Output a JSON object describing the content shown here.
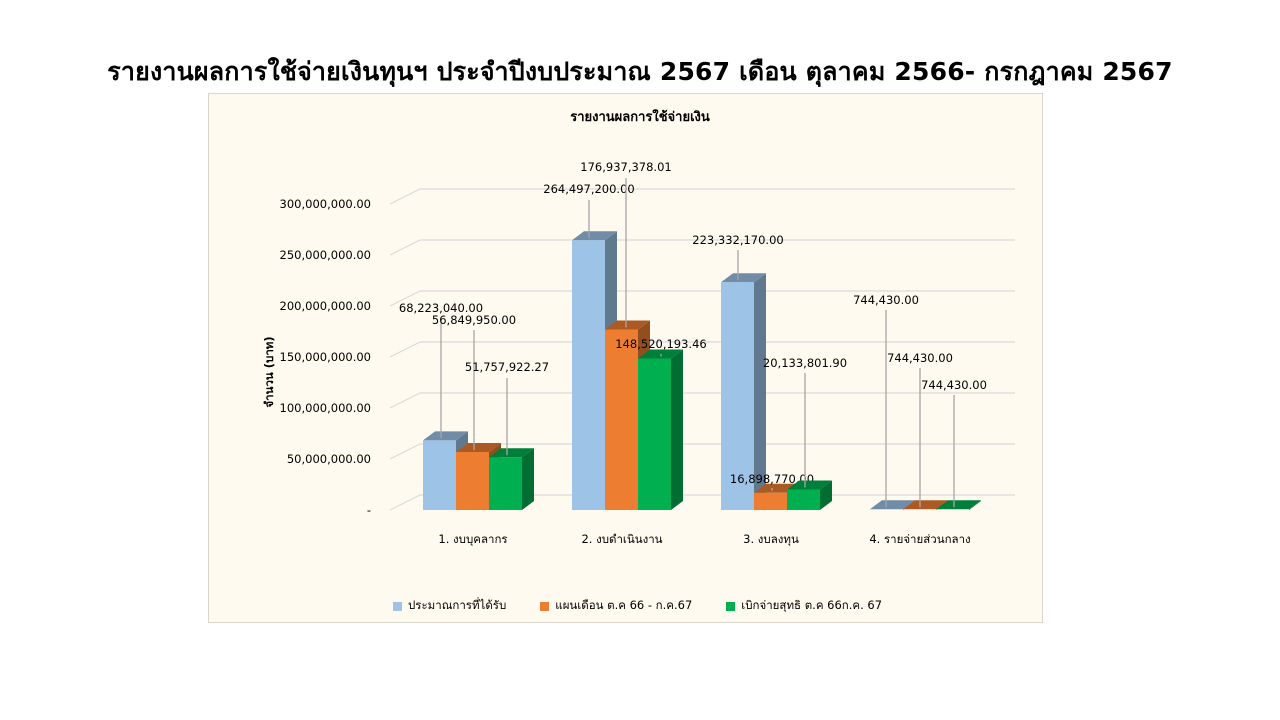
{
  "slide": {
    "title": "รายงานผลการใช้จ่ายเงินทุนฯ  ประจำปีงบประมาณ  2567 เดือน ตุลาคม 2566- กรกฎาคม 2567"
  },
  "chart_data": {
    "type": "bar",
    "style": "3d-clustered-column",
    "title": "รายงานผลการใช้จ่ายเงิน",
    "xlabel": "",
    "ylabel": "จำนวน (บาท)",
    "ylim": [
      0,
      300000000
    ],
    "yticks": [
      "-",
      "50,000,000.00",
      "100,000,000.00",
      "150,000,000.00",
      "200,000,000.00",
      "250,000,000.00",
      "300,000,000.00"
    ],
    "grid": true,
    "legend_position": "bottom",
    "categories": [
      "1. งบบุคลากร",
      "2. งบดำเนินงาน",
      "3. งบลงทุน",
      "4. รายจ่ายส่วนกลาง"
    ],
    "series": [
      {
        "name": "ประมาณการที่ได้รับ",
        "color": "#9dc3e6",
        "values": [
          68223040.0,
          264497200.0,
          223332170.0,
          744430.0
        ],
        "labels": [
          "68,223,040.00",
          "264,497,200.00",
          "223,332,170.00",
          "744,430.00"
        ]
      },
      {
        "name": "แผนเดือน ต.ค 66 - ก.ค.67",
        "color": "#ed7d31",
        "values": [
          56849950.0,
          176937378.01,
          16898770.0,
          744430.0
        ],
        "labels": [
          "56,849,950.00",
          "176,937,378.01",
          "16,898,770.00",
          "744,430.00"
        ]
      },
      {
        "name": "เบิกจ่ายสุทธิ ต.ค 66ก.ค. 67",
        "color": "#00b050",
        "values": [
          51757922.27,
          148520193.46,
          20133801.9,
          744430.0
        ],
        "labels": [
          "51,757,922.27",
          "148,520,193.46",
          "20,133,801.90",
          "744,430.00"
        ]
      }
    ]
  },
  "colors": {
    "background": "#ffffff",
    "plot_background": "#fffaef",
    "gridline": "#d9d9d9",
    "leader_line": "#a6a6a6"
  }
}
